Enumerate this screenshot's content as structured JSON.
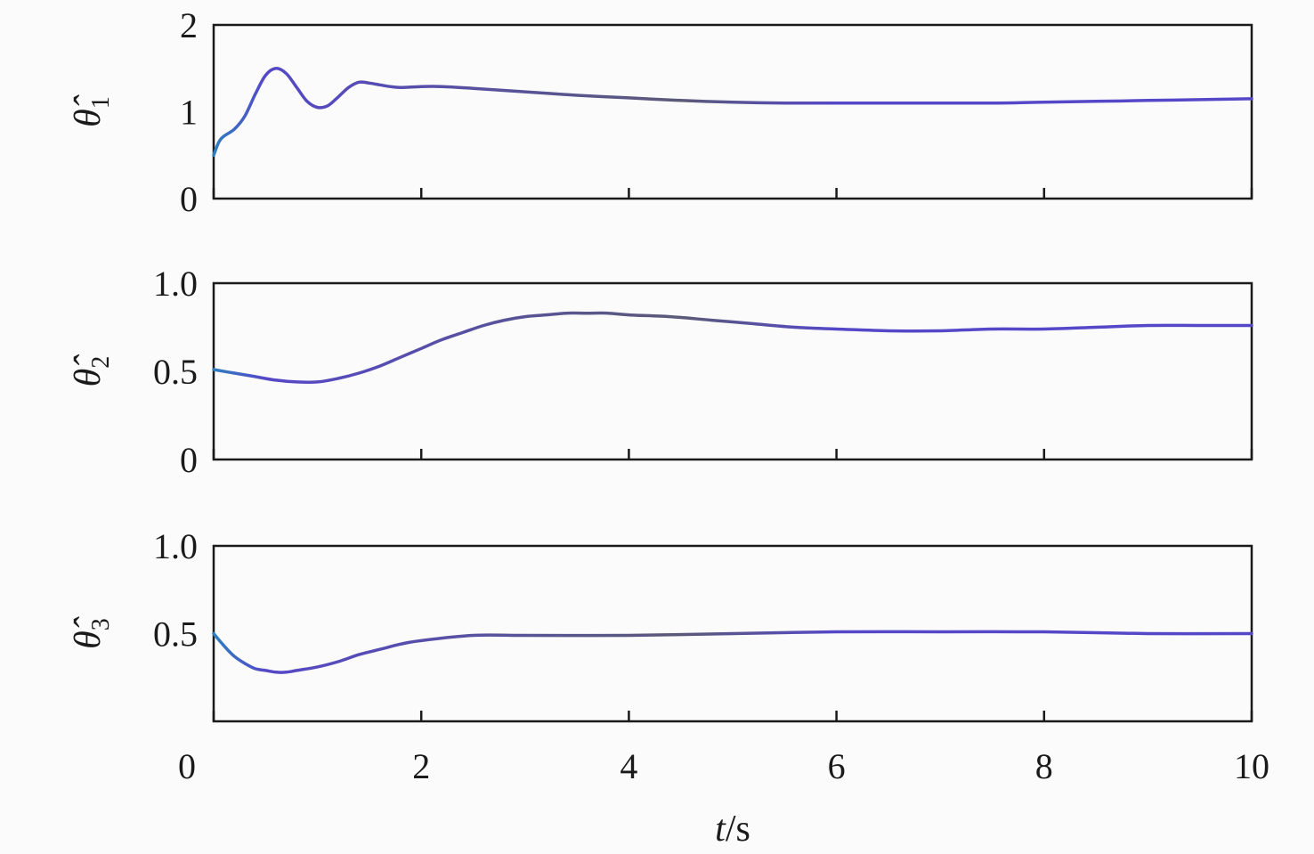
{
  "chart_data": {
    "type": "line",
    "xlabel": {
      "italic": "t",
      "rest": "/s"
    },
    "x_ticks": [
      "0",
      "2",
      "4",
      "6",
      "8",
      "10"
    ],
    "xlim": [
      0,
      10
    ],
    "colors": {
      "line": "#5548c8",
      "line_dark": "#5a5a78",
      "line_start": "#2f7fc0",
      "axis": "#1a1a1a",
      "background": "#fbfbfb"
    },
    "panels": [
      {
        "ylabel": {
          "symbol": "θ̂",
          "subscript": "1"
        },
        "ylim": [
          0,
          2
        ],
        "y_ticks": [
          "0",
          "1",
          "2"
        ],
        "y_tick_values": [
          0,
          1,
          2
        ],
        "x": [
          0,
          0.05,
          0.1,
          0.2,
          0.3,
          0.4,
          0.5,
          0.6,
          0.7,
          0.8,
          0.9,
          1.0,
          1.1,
          1.2,
          1.3,
          1.4,
          1.5,
          1.6,
          1.7,
          1.8,
          2.0,
          2.2,
          2.5,
          3.0,
          3.5,
          4.0,
          4.5,
          5.0,
          5.5,
          6.0,
          6.5,
          7.0,
          7.5,
          8.0,
          8.5,
          9.0,
          9.5,
          10.0
        ],
        "y": [
          0.5,
          0.65,
          0.72,
          0.8,
          0.95,
          1.2,
          1.42,
          1.5,
          1.44,
          1.28,
          1.12,
          1.05,
          1.07,
          1.17,
          1.28,
          1.34,
          1.33,
          1.31,
          1.29,
          1.28,
          1.29,
          1.29,
          1.27,
          1.23,
          1.19,
          1.16,
          1.13,
          1.11,
          1.1,
          1.1,
          1.1,
          1.1,
          1.1,
          1.11,
          1.12,
          1.13,
          1.14,
          1.15
        ]
      },
      {
        "ylabel": {
          "symbol": "θ̂",
          "subscript": "2"
        },
        "ylim": [
          0,
          1.0
        ],
        "y_ticks": [
          "0",
          "0.5",
          "1.0"
        ],
        "y_tick_values": [
          0,
          0.5,
          1.0
        ],
        "x": [
          0,
          0.2,
          0.4,
          0.6,
          0.8,
          1.0,
          1.2,
          1.4,
          1.6,
          1.8,
          2.0,
          2.2,
          2.4,
          2.6,
          2.8,
          3.0,
          3.2,
          3.4,
          3.6,
          3.8,
          4.0,
          4.4,
          4.8,
          5.2,
          5.6,
          6.0,
          6.5,
          7.0,
          7.5,
          8.0,
          8.5,
          9.0,
          9.5,
          10.0
        ],
        "y": [
          0.51,
          0.49,
          0.47,
          0.45,
          0.44,
          0.44,
          0.46,
          0.49,
          0.53,
          0.58,
          0.63,
          0.68,
          0.72,
          0.76,
          0.79,
          0.81,
          0.82,
          0.83,
          0.83,
          0.83,
          0.82,
          0.81,
          0.79,
          0.77,
          0.75,
          0.74,
          0.73,
          0.73,
          0.74,
          0.74,
          0.75,
          0.76,
          0.76,
          0.76
        ]
      },
      {
        "ylabel": {
          "symbol": "θ̂",
          "subscript": "3"
        },
        "ylim": [
          0,
          1.0
        ],
        "y_ticks": [
          "0.5",
          "1.0"
        ],
        "y_tick_values": [
          0.5,
          1.0
        ],
        "x": [
          0,
          0.1,
          0.2,
          0.3,
          0.4,
          0.5,
          0.6,
          0.7,
          0.8,
          1.0,
          1.2,
          1.4,
          1.6,
          1.8,
          2.0,
          2.5,
          3.0,
          4.0,
          5.0,
          6.0,
          7.0,
          8.0,
          9.0,
          10.0
        ],
        "y": [
          0.5,
          0.43,
          0.37,
          0.33,
          0.3,
          0.29,
          0.28,
          0.28,
          0.29,
          0.31,
          0.34,
          0.38,
          0.41,
          0.44,
          0.46,
          0.49,
          0.49,
          0.49,
          0.5,
          0.51,
          0.51,
          0.51,
          0.5,
          0.5
        ]
      }
    ]
  }
}
